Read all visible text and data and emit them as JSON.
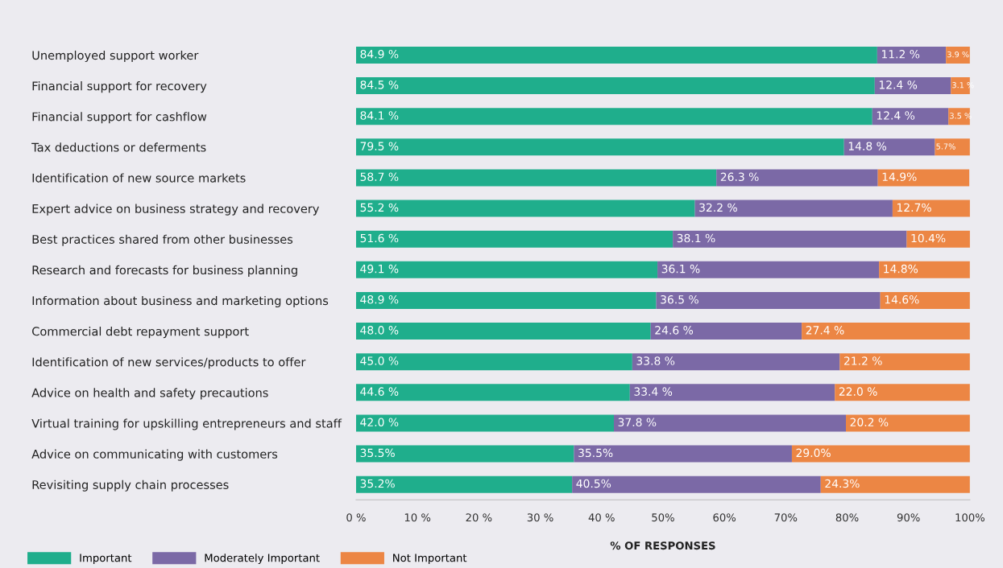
{
  "chart_data": {
    "type": "bar",
    "orientation": "horizontal",
    "stacked": true,
    "xlabel": "% OF RESPONSES",
    "categories": [
      "Unemployed support worker",
      "Financial support for recovery",
      "Financial support for cashflow",
      "Tax deductions or deferments",
      "Identification of new source markets",
      "Expert advice on business strategy and recovery",
      "Best practices shared from other businesses",
      "Research and forecasts for business planning",
      "Information about business and marketing options",
      "Commercial debt repayment support",
      "Identification of new services/products to offer",
      "Advice on health and safety precautions",
      "Virtual training for upskilling entrepreneurs and staff",
      "Advice on communicating with customers",
      "Revisiting supply chain processes"
    ],
    "series": [
      {
        "name": "Important",
        "color": "#1fae8c",
        "values": [
          84.9,
          84.5,
          84.1,
          79.5,
          58.7,
          55.2,
          51.6,
          49.1,
          48.9,
          48.0,
          45.0,
          44.6,
          42.0,
          35.5,
          35.2
        ],
        "value_labels": [
          "84.9 %",
          "84.5 %",
          "84.1 %",
          "79.5 %",
          "58.7 %",
          "55.2 %",
          "51.6 %",
          "49.1 %",
          "48.9 %",
          "48.0 %",
          "45.0 %",
          "44.6 %",
          "42.0 %",
          "35.5%",
          "35.2%"
        ]
      },
      {
        "name": "Moderately Important",
        "color": "#7b69a6",
        "values": [
          11.2,
          12.4,
          12.4,
          14.8,
          26.3,
          32.2,
          38.1,
          36.1,
          36.5,
          24.6,
          33.8,
          33.4,
          37.8,
          35.5,
          40.5
        ],
        "value_labels": [
          "11.2 %",
          "12.4 %",
          "12.4 %",
          "14.8 %",
          "26.3 %",
          "32.2 %",
          "38.1 %",
          "36.1 %",
          "36.5 %",
          "24.6 %",
          "33.8 %",
          "33.4 %",
          "37.8 %",
          "35.5%",
          "40.5%"
        ]
      },
      {
        "name": "Not Important",
        "color": "#ec8644",
        "values": [
          3.9,
          3.1,
          3.5,
          5.7,
          14.9,
          12.7,
          10.4,
          14.8,
          14.6,
          27.4,
          21.2,
          22.0,
          20.2,
          29.0,
          24.3
        ],
        "value_labels": [
          "3.9 %",
          "3.1 %",
          "3.5 %",
          "5.7%",
          "14.9%",
          "12.7%",
          "10.4%",
          "14.8%",
          "14.6%",
          "27.4 %",
          "21.2 %",
          "22.0 %",
          "20.2 %",
          "29.0%",
          "24.3%"
        ]
      }
    ],
    "xlim": [
      0,
      100
    ],
    "xticks": [
      {
        "value": 0,
        "label": "0 %"
      },
      {
        "value": 10,
        "label": "10 %"
      },
      {
        "value": 20,
        "label": "20 %"
      },
      {
        "value": 30,
        "label": "30 %"
      },
      {
        "value": 40,
        "label": "40 %"
      },
      {
        "value": 50,
        "label": "50%"
      },
      {
        "value": 60,
        "label": "60%"
      },
      {
        "value": 70,
        "label": "70%"
      },
      {
        "value": 80,
        "label": "80%"
      },
      {
        "value": 90,
        "label": "90%"
      },
      {
        "value": 100,
        "label": "100%"
      }
    ],
    "grid": false,
    "legend": "bottom left"
  }
}
